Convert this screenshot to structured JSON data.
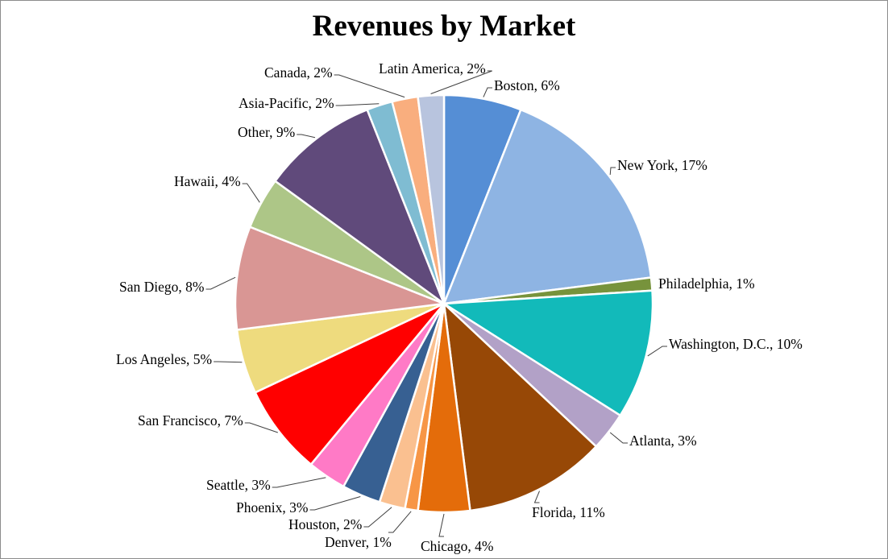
{
  "chart_data": {
    "type": "pie",
    "title": "Revenues by Market",
    "label_format": "category, percent",
    "slices": [
      {
        "name": "Boston",
        "value": 6,
        "label": "Boston, 6%",
        "color": "#558ED5"
      },
      {
        "name": "New York",
        "value": 17,
        "label": "New York, 17%",
        "color": "#8EB4E3"
      },
      {
        "name": "Philadelphia",
        "value": 1,
        "label": "Philadelphia, 1%",
        "color": "#77933C"
      },
      {
        "name": "Washington, D.C.",
        "value": 10,
        "label": "Washington,  D.C., 10%",
        "color": "#12BABA"
      },
      {
        "name": "Atlanta",
        "value": 3,
        "label": "Atlanta, 3%",
        "color": "#B2A1C7"
      },
      {
        "name": "Florida",
        "value": 11,
        "label": "Florida, 11%",
        "color": "#974806"
      },
      {
        "name": "Chicago",
        "value": 4,
        "label": "Chicago, 4%",
        "color": "#E46C0A"
      },
      {
        "name": "Denver",
        "value": 1,
        "label": "Denver, 1%",
        "color": "#F79646"
      },
      {
        "name": "Houston",
        "value": 2,
        "label": "Houston, 2%",
        "color": "#FAC090"
      },
      {
        "name": "Phoenix",
        "value": 3,
        "label": "Phoenix, 3%",
        "color": "#376092"
      },
      {
        "name": "Seattle",
        "value": 3,
        "label": "Seattle, 3%",
        "color": "#FF7AC6"
      },
      {
        "name": "San Francisco",
        "value": 7,
        "label": "San Francisco, 7%",
        "color": "#FF0000"
      },
      {
        "name": "Los Angeles",
        "value": 5,
        "label": "Los Angeles, 5%",
        "color": "#EEDB7E"
      },
      {
        "name": "San Diego",
        "value": 8,
        "label": "San Diego, 8%",
        "color": "#D99694"
      },
      {
        "name": "Hawaii",
        "value": 4,
        "label": "Hawaii, 4%",
        "color": "#ADC687"
      },
      {
        "name": "Other",
        "value": 9,
        "label": "Other, 9%",
        "color": "#604A7B"
      },
      {
        "name": "Asia-Pacific",
        "value": 2,
        "label": "Asia-Pacific, 2%",
        "color": "#7FBCD2"
      },
      {
        "name": "Canada",
        "value": 2,
        "label": "Canada, 2%",
        "color": "#F9AE7E"
      },
      {
        "name": "Latin America",
        "value": 2,
        "label": "Latin America, 2%",
        "color": "#B8C4DE"
      }
    ]
  }
}
